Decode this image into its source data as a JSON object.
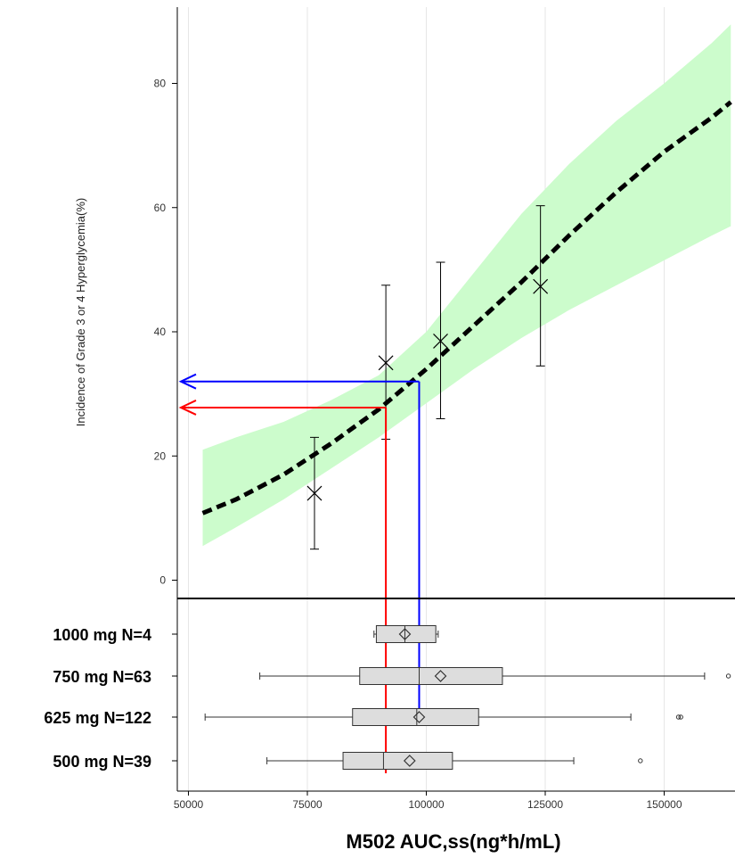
{
  "chart_data": {
    "type": "line",
    "xlabel": "M502 AUC,ss(ng*h/mL)",
    "ylabel": "Incidence of Grade 3 or 4 Hyperglycemia(%)",
    "xlim": [
      48000,
      164000
    ],
    "x_ticks": [
      50000,
      75000,
      100000,
      125000,
      150000
    ],
    "y_ticks": [
      0,
      20,
      40,
      60,
      80
    ],
    "grid": "vertical",
    "colors": {
      "band": "#ccfccc",
      "curve": "#000000",
      "guide_red": "#ff0000",
      "guide_blue": "#0000ff",
      "box_fill": "#dddddd"
    },
    "model_curve": {
      "x": [
        53000,
        60000,
        70000,
        80000,
        90000,
        100000,
        110000,
        120000,
        130000,
        140000,
        150000,
        160000,
        164000
      ],
      "y": [
        10.8,
        13.0,
        17.0,
        22.0,
        27.5,
        34.0,
        41.0,
        48.0,
        55.5,
        62.5,
        69.0,
        74.5,
        77.0
      ]
    },
    "confidence_band": {
      "x": [
        53000,
        60000,
        70000,
        80000,
        90000,
        100000,
        110000,
        120000,
        130000,
        140000,
        150000,
        160000,
        164000
      ],
      "lower": [
        5.5,
        8.5,
        13.0,
        18.0,
        23.0,
        28.5,
        34.0,
        39.0,
        43.5,
        47.5,
        51.5,
        55.5,
        57.0
      ],
      "upper": [
        21.0,
        23.0,
        25.5,
        29.0,
        33.0,
        40.0,
        49.5,
        59.0,
        67.0,
        74.0,
        80.0,
        86.5,
        89.5
      ]
    },
    "observed": [
      {
        "x": 76500,
        "y": 14.0,
        "lower": 5.0,
        "upper": 23.0
      },
      {
        "x": 91500,
        "y": 35.0,
        "lower": 22.7,
        "upper": 47.5
      },
      {
        "x": 103000,
        "y": 38.5,
        "lower": 26.0,
        "upper": 51.2
      },
      {
        "x": 124000,
        "y": 47.3,
        "lower": 34.5,
        "upper": 60.3
      }
    ],
    "guides": [
      {
        "color": "red",
        "x": 91500,
        "y": 27.8
      },
      {
        "color": "blue",
        "x": 98500,
        "y": 32.0
      }
    ],
    "boxplots": [
      {
        "label": "1000 mg N=4",
        "min": 89000,
        "q1": 89500,
        "median": 95500,
        "q3": 102000,
        "max": 102500,
        "mean": 95500,
        "outliers": []
      },
      {
        "label": "750 mg N=63",
        "min": 65000,
        "q1": 86000,
        "median": 98500,
        "q3": 116000,
        "max": 158500,
        "mean": 103000,
        "outliers": [
          163500
        ]
      },
      {
        "label": "625 mg N=122",
        "min": 53500,
        "q1": 84500,
        "median": 98000,
        "q3": 111000,
        "max": 143000,
        "mean": 98500,
        "outliers": [
          153000,
          153500
        ]
      },
      {
        "label": "500 mg N=39",
        "min": 66500,
        "q1": 82500,
        "median": 91000,
        "q3": 105500,
        "max": 131000,
        "mean": 96500,
        "outliers": [
          145000
        ]
      }
    ]
  }
}
